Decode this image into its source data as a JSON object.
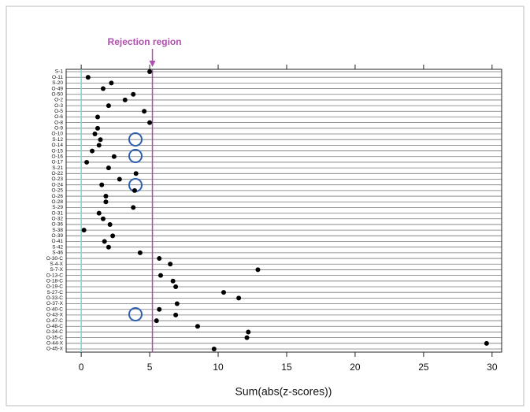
{
  "chart_data": {
    "type": "dot",
    "xlabel": "Sum(abs(z-scores))",
    "categories": [
      "S-1",
      "O-11",
      "S-20",
      "O-49",
      "O-50",
      "O-2",
      "O-3",
      "O-5",
      "O-6",
      "O-8",
      "O-9",
      "O-10",
      "S-12",
      "O-14",
      "O-15",
      "O-16",
      "O-17",
      "S-21",
      "O-22",
      "O-23",
      "O-24",
      "O-25",
      "O-26",
      "O-28",
      "S-29",
      "O-31",
      "O-32",
      "O-36",
      "S-38",
      "O-39",
      "O-41",
      "S-42",
      "S-46",
      "O-30-C",
      "S-4-X",
      "S-7-X",
      "O-13-C",
      "O-18-C",
      "O-19-C",
      "S-27-C",
      "O-33-C",
      "O-37-X",
      "O-40-C",
      "O-43-X",
      "O-47-C",
      "O-48-C",
      "O-34-C",
      "O-35-C",
      "O-44-X",
      "O-45-X"
    ],
    "values": [
      5.0,
      0.5,
      2.2,
      1.6,
      3.8,
      3.2,
      2.0,
      4.6,
      1.2,
      5.0,
      1.2,
      1.0,
      1.4,
      1.3,
      0.8,
      2.4,
      0.4,
      2.0,
      4.0,
      2.8,
      1.5,
      3.9,
      1.8,
      1.8,
      3.8,
      1.3,
      1.6,
      2.1,
      0.2,
      2.3,
      1.7,
      2.0,
      4.3,
      5.7,
      6.5,
      12.9,
      5.8,
      6.7,
      6.9,
      10.4,
      11.5,
      7.0,
      5.7,
      6.9,
      5.5,
      8.5,
      12.2,
      12.1,
      29.6,
      9.7
    ],
    "color": "#000000",
    "xlim": [
      -1.1,
      30.7
    ],
    "xticks": [
      0,
      5,
      10,
      15,
      20,
      25,
      30
    ],
    "annotation": {
      "text": "Rejection region",
      "x": 5.2,
      "color": "#b04fb0"
    },
    "reference_x": 0,
    "reference_color": "#7fd4d4"
  }
}
